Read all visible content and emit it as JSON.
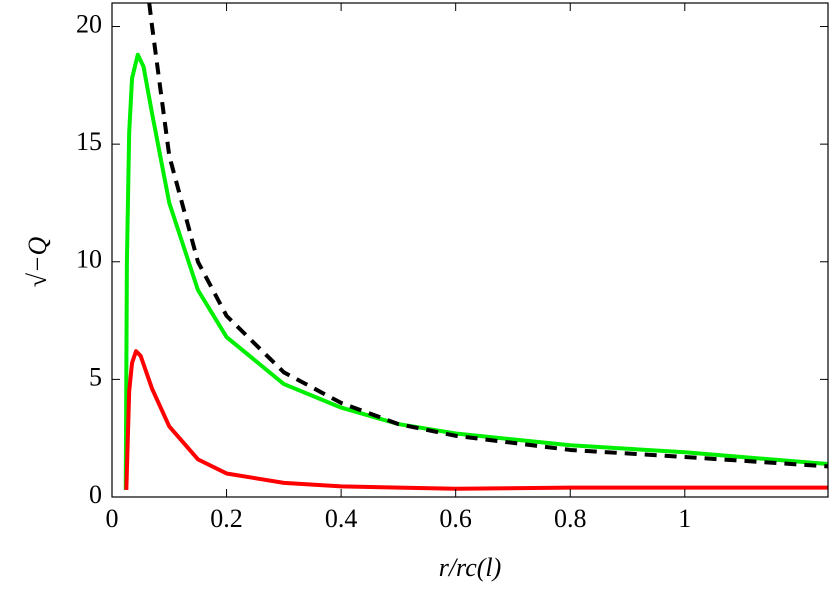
{
  "chart_data": {
    "type": "line",
    "xlabel": "r/rc(l)",
    "ylabel": "√−Q",
    "xlim": [
      0,
      1.25
    ],
    "ylim": [
      0,
      21
    ],
    "xticks": [
      0,
      0.2,
      0.4,
      0.6,
      0.8,
      1
    ],
    "yticks": [
      0,
      5,
      10,
      15,
      20
    ],
    "series": [
      {
        "color": "#00ee00",
        "style": "solid",
        "x": [
          0.024,
          0.026,
          0.03,
          0.035,
          0.045,
          0.055,
          0.07,
          0.1,
          0.15,
          0.2,
          0.3,
          0.4,
          0.5,
          0.6,
          0.8,
          1.0,
          1.25
        ],
        "values": [
          0.3,
          10,
          15.5,
          17.8,
          18.8,
          18.3,
          16.3,
          12.5,
          8.8,
          6.8,
          4.8,
          3.8,
          3.1,
          2.7,
          2.2,
          1.9,
          1.4
        ]
      },
      {
        "color": "#ff0000",
        "style": "solid",
        "x": [
          0.025,
          0.03,
          0.035,
          0.042,
          0.05,
          0.07,
          0.1,
          0.15,
          0.2,
          0.3,
          0.4,
          0.6,
          0.8,
          1.25
        ],
        "values": [
          0.3,
          4.5,
          5.7,
          6.2,
          6.0,
          4.6,
          3.0,
          1.6,
          1.0,
          0.6,
          0.45,
          0.35,
          0.4,
          0.4
        ]
      },
      {
        "color": "#000000",
        "style": "dashed",
        "x": [
          0.065,
          0.07,
          0.1,
          0.15,
          0.2,
          0.3,
          0.4,
          0.5,
          0.6,
          0.8,
          1.0,
          1.25
        ],
        "values": [
          21,
          20,
          14.5,
          10,
          7.7,
          5.3,
          4.0,
          3.1,
          2.6,
          2.0,
          1.7,
          1.3
        ]
      }
    ]
  }
}
